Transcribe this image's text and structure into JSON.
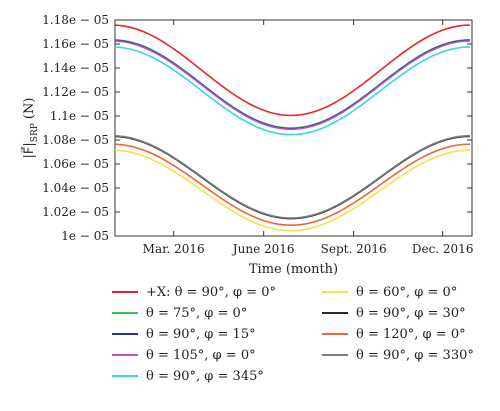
{
  "chart_data": {
    "type": "line",
    "xlabel": "Time (month)",
    "ylabel": "|F⃗|SRP (N)",
    "ylabel_main": "|F⃗|",
    "ylabel_sub": "SRP",
    "ylabel_unit": " (N)",
    "xlim": [
      0,
      365
    ],
    "ylim": [
      1e-05,
      1.18e-05
    ],
    "x_ticks": [
      {
        "day": 60,
        "label": "Mar. 2016"
      },
      {
        "day": 152,
        "label": "June 2016"
      },
      {
        "day": 244,
        "label": "Sept. 2016"
      },
      {
        "day": 335,
        "label": "Dec. 2016"
      }
    ],
    "y_ticks": [
      "1e − 05",
      "1.02e − 05",
      "1.04e − 05",
      "1.06e − 05",
      "1.08e − 05",
      "1.1e − 05",
      "1.12e − 05",
      "1.14e − 05",
      "1.16e − 05",
      "1.18e − 05"
    ],
    "y_tick_values": [
      1e-05,
      1.02e-05,
      1.04e-05,
      1.06e-05,
      1.08e-05,
      1.1e-05,
      1.12e-05,
      1.14e-05,
      1.16e-05,
      1.18e-05
    ],
    "grid": false,
    "series": [
      {
        "name": "+X: θ = 90°, φ = 0°",
        "color": "#e8262b",
        "start": 1.1757e-05,
        "min": 1.1005e-05,
        "end": 1.1757e-05
      },
      {
        "name": "θ = 75°, φ = 0°",
        "color": "#38c64a",
        "start": 1.1635e-05,
        "min": 1.09e-05,
        "end": 1.1635e-05
      },
      {
        "name": "θ = 90°, φ = 15°",
        "color": "#2d2ea6",
        "start": 1.163e-05,
        "min": 1.0895e-05,
        "end": 1.163e-05
      },
      {
        "name": "θ = 105°, φ = 0°",
        "color": "#b84fd3",
        "start": 1.1625e-05,
        "min": 1.089e-05,
        "end": 1.1625e-05
      },
      {
        "name": "θ = 90°, φ = 345°",
        "color": "#35d6e6",
        "start": 1.1575e-05,
        "min": 1.0845e-05,
        "end": 1.1575e-05
      },
      {
        "name": "θ = 60°, φ = 0°",
        "color": "#f6e24a",
        "start": 1.0715e-05,
        "min": 1.0045e-05,
        "end": 1.0715e-05
      },
      {
        "name": "θ = 90°, φ = 30°",
        "color": "#2a2a2a",
        "start": 1.083e-05,
        "min": 1.0145e-05,
        "end": 1.083e-05
      },
      {
        "name": "θ = 120°, φ = 0°",
        "color": "#e8683a",
        "start": 1.0765e-05,
        "min": 1.009e-05,
        "end": 1.0765e-05
      },
      {
        "name": "θ = 90°, φ = 330°",
        "color": "#7d7d7d",
        "start": 1.0835e-05,
        "min": 1.015e-05,
        "end": 1.0835e-05
      }
    ],
    "min_day": 180,
    "legend_placement": "bottom"
  },
  "legend_order": [
    [
      0,
      1,
      2,
      3,
      4
    ],
    [
      5,
      6,
      7,
      8
    ]
  ]
}
